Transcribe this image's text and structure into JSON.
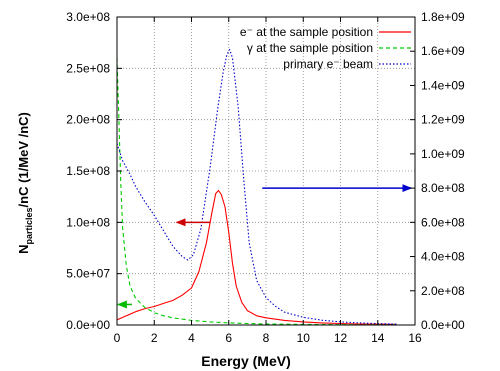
{
  "chart_data": {
    "type": "line",
    "xlabel": "Energy (MeV)",
    "ylabel_left": {
      "main": "N",
      "sub": "particles",
      "rest": "/nC (1/MeV /nC)"
    },
    "xlim": [
      0,
      16
    ],
    "ylim_left": [
      0,
      300000000
    ],
    "ylim_right": [
      0,
      1800000000
    ],
    "x_ticks": [
      "0",
      "2",
      "4",
      "6",
      "8",
      "10",
      "12",
      "14",
      "16"
    ],
    "y_left_ticks": [
      "0.0e+00",
      "5.0e+07",
      "1.0e+08",
      "1.5e+08",
      "2.0e+08",
      "2.5e+08",
      "3.0e+08"
    ],
    "y_right_ticks": [
      "0.0e+00",
      "2.0e+08",
      "4.0e+08",
      "6.0e+08",
      "8.0e+08",
      "1.0e+09",
      "1.2e+09",
      "1.4e+09",
      "1.6e+09",
      "1.8e+09"
    ],
    "grid": true,
    "legend_position": "top-right",
    "series": [
      {
        "name": "e⁻ at the sample position",
        "axis": "left",
        "color": "#ff0000",
        "dash": "solid",
        "points": [
          [
            0,
            5000000
          ],
          [
            0.5,
            9000000
          ],
          [
            1,
            13000000
          ],
          [
            1.5,
            16000000
          ],
          [
            2,
            18000000
          ],
          [
            2.5,
            21000000
          ],
          [
            3,
            24000000
          ],
          [
            3.5,
            29000000
          ],
          [
            4,
            36000000
          ],
          [
            4.4,
            52000000
          ],
          [
            4.8,
            80000000
          ],
          [
            5.1,
            110000000
          ],
          [
            5.3,
            128000000
          ],
          [
            5.45,
            131000000
          ],
          [
            5.6,
            127000000
          ],
          [
            5.8,
            115000000
          ],
          [
            6,
            90000000
          ],
          [
            6.2,
            60000000
          ],
          [
            6.4,
            38000000
          ],
          [
            6.7,
            22000000
          ],
          [
            7,
            14000000
          ],
          [
            7.5,
            9000000
          ],
          [
            8,
            7000000
          ],
          [
            9,
            4500000
          ],
          [
            10,
            3000000
          ],
          [
            11,
            2000000
          ],
          [
            12,
            1500000
          ],
          [
            13,
            1000000
          ],
          [
            14,
            800000
          ],
          [
            15,
            600000
          ]
        ]
      },
      {
        "name": "γ at the sample position",
        "axis": "left",
        "color": "#00cc00",
        "dash": "dashed",
        "points": [
          [
            0,
            260000000
          ],
          [
            0.1,
            200000000
          ],
          [
            0.2,
            140000000
          ],
          [
            0.3,
            95000000
          ],
          [
            0.5,
            58000000
          ],
          [
            0.7,
            38000000
          ],
          [
            1,
            26000000
          ],
          [
            1.5,
            17000000
          ],
          [
            2,
            12000000
          ],
          [
            2.5,
            9000000
          ],
          [
            3,
            7000000
          ],
          [
            4,
            4500000
          ],
          [
            5,
            3000000
          ],
          [
            6,
            2000000
          ],
          [
            7,
            1500000
          ],
          [
            8,
            1000000
          ],
          [
            10,
            600000
          ],
          [
            12,
            300000
          ],
          [
            15,
            100000
          ]
        ]
      },
      {
        "name": "primary e⁻ beam",
        "axis": "right",
        "color": "#0000cc",
        "dash": "dotted",
        "points": [
          [
            0,
            1060000000
          ],
          [
            0.3,
            960000000
          ],
          [
            0.7,
            880000000
          ],
          [
            1,
            810000000
          ],
          [
            1.5,
            720000000
          ],
          [
            2,
            640000000
          ],
          [
            2.5,
            550000000
          ],
          [
            3,
            460000000
          ],
          [
            3.5,
            400000000
          ],
          [
            3.8,
            380000000
          ],
          [
            4.1,
            410000000
          ],
          [
            4.5,
            560000000
          ],
          [
            5,
            920000000
          ],
          [
            5.4,
            1260000000
          ],
          [
            5.7,
            1480000000
          ],
          [
            5.9,
            1580000000
          ],
          [
            6.05,
            1610000000
          ],
          [
            6.2,
            1560000000
          ],
          [
            6.5,
            1280000000
          ],
          [
            6.8,
            860000000
          ],
          [
            7.1,
            480000000
          ],
          [
            7.5,
            260000000
          ],
          [
            8,
            160000000
          ],
          [
            8.5,
            110000000
          ],
          [
            9,
            75000000
          ],
          [
            10,
            45000000
          ],
          [
            11,
            28000000
          ],
          [
            12,
            18000000
          ],
          [
            13,
            12000000
          ],
          [
            14,
            8000000
          ],
          [
            15,
            5000000
          ]
        ]
      }
    ],
    "arrows": [
      {
        "color": "#cc0000",
        "direction": "left",
        "from": [
          5.0,
          100000000
        ],
        "to": [
          3.2,
          100000000
        ]
      },
      {
        "color": "#0000cc",
        "direction": "right",
        "from": [
          7.8,
          800000000
        ],
        "to": [
          15.8,
          800000000
        ]
      },
      {
        "color": "#00bb00",
        "direction": "left",
        "from": [
          0.8,
          20000000
        ],
        "to": [
          0.05,
          20000000
        ]
      }
    ]
  }
}
